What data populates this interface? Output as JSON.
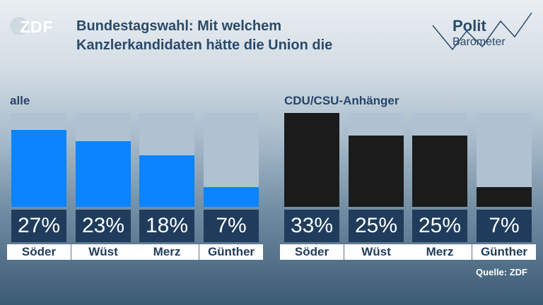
{
  "brand": {
    "logo_text": "ZDF",
    "polit_line1": "Polit",
    "polit_line2": "Barometer"
  },
  "title_line1": "Bundestagswahl: Mit welchem",
  "title_line2": "Kanzlerkandidaten hätte die Union die",
  "source": "Quelle: ZDF",
  "colors": {
    "group_all": "#0a84ff",
    "group_cdu": "#1b1b1b",
    "bar_background": "#aec2d2",
    "label_box": "#1f3c5c"
  },
  "chart_data": [
    {
      "type": "bar",
      "group_label": "alle",
      "categories": [
        "Söder",
        "Wüst",
        "Merz",
        "Günther"
      ],
      "values": [
        27,
        23,
        18,
        7
      ],
      "value_labels": [
        "27%",
        "23%",
        "18%",
        "7%"
      ],
      "unit": "%",
      "ylim": [
        0,
        33
      ]
    },
    {
      "type": "bar",
      "group_label": "CDU/CSU-Anhänger",
      "categories": [
        "Söder",
        "Wüst",
        "Merz",
        "Günther"
      ],
      "values": [
        33,
        25,
        25,
        7
      ],
      "value_labels": [
        "33%",
        "25%",
        "25%",
        "7%"
      ],
      "unit": "%",
      "ylim": [
        0,
        33
      ]
    }
  ]
}
